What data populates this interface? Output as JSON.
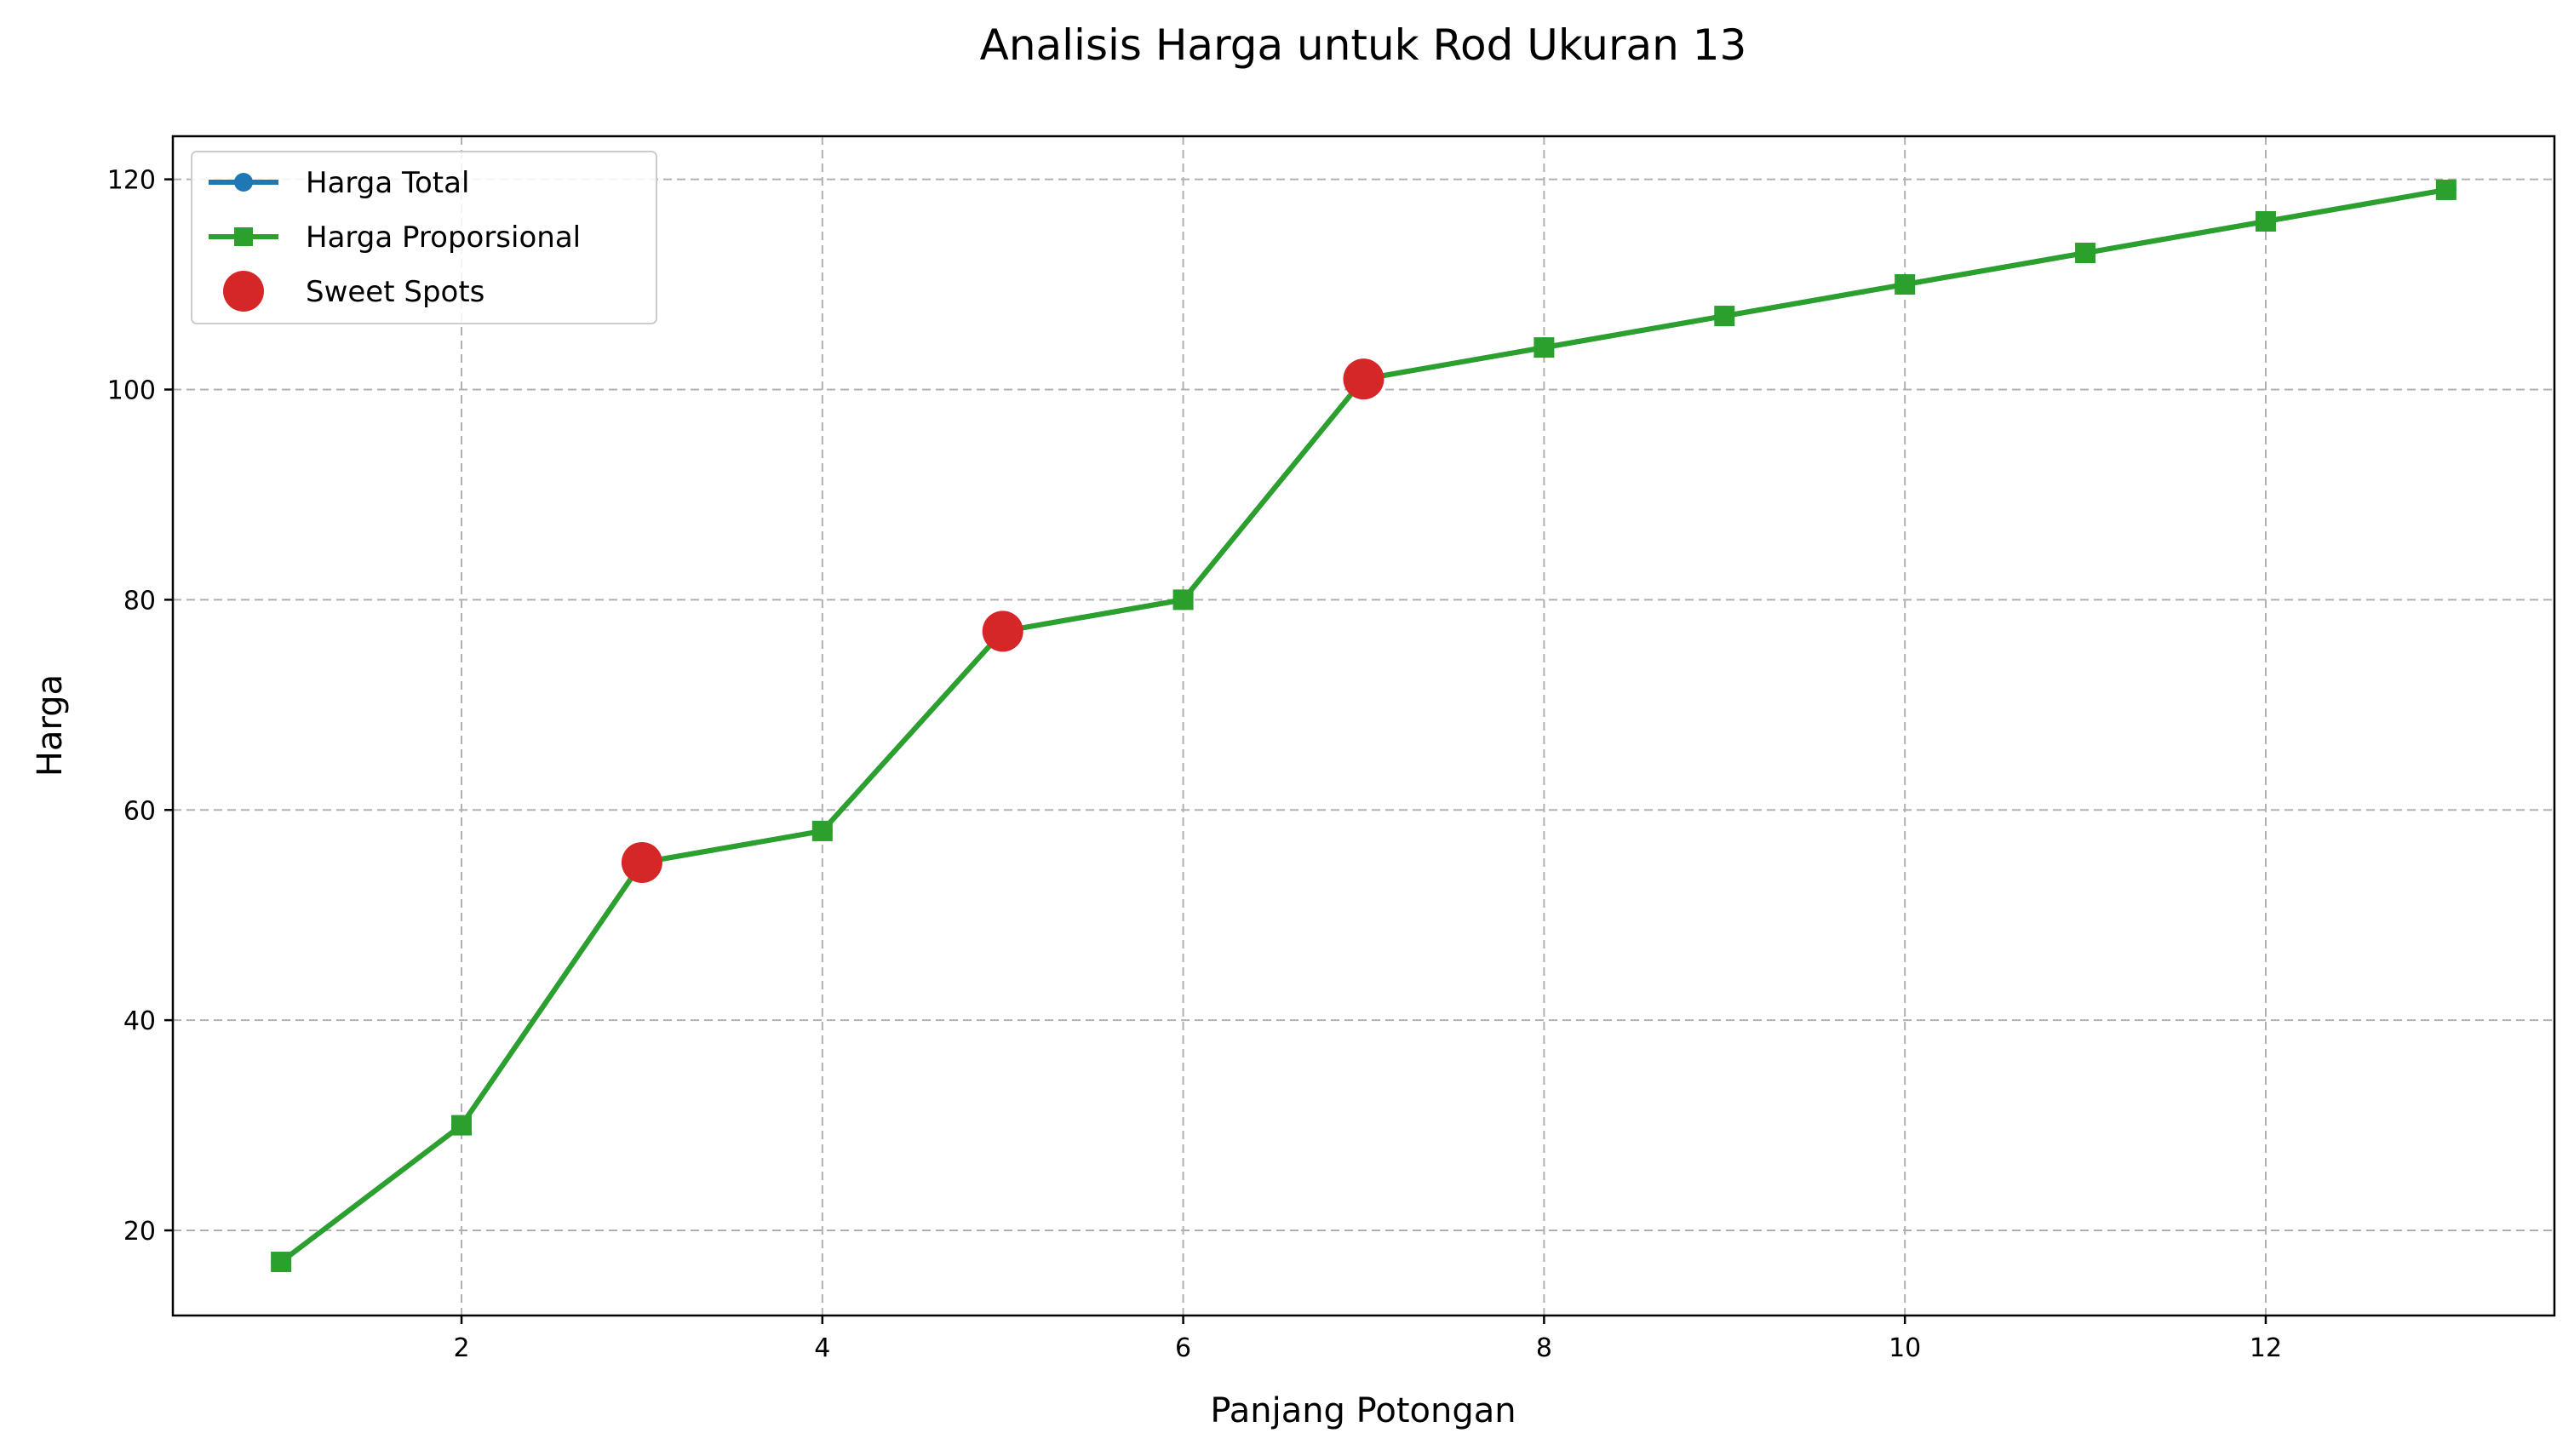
{
  "chart_data": {
    "type": "line",
    "title": "Analisis Harga untuk Rod Ukuran 13",
    "xlabel": "Panjang Potongan",
    "ylabel": "Harga",
    "xlim": [
      0.4,
      13.6
    ],
    "ylim": [
      11.9,
      124.1
    ],
    "xticks": [
      2,
      4,
      6,
      8,
      10,
      12
    ],
    "yticks": [
      20,
      40,
      60,
      80,
      100,
      120
    ],
    "grid": true,
    "legend_position": "top-left",
    "x": [
      1,
      2,
      3,
      4,
      5,
      6,
      7,
      8,
      9,
      10,
      11,
      12,
      13
    ],
    "series": [
      {
        "name": "Harga Total",
        "marker": "circle",
        "color": "#1f77b4",
        "values": [
          17,
          30,
          55,
          58,
          77,
          80,
          101,
          104,
          107,
          110,
          113,
          116,
          119
        ]
      },
      {
        "name": "Harga Proporsional",
        "marker": "square",
        "color": "#2ca02c",
        "values": [
          17,
          30,
          55,
          58,
          77,
          80,
          101,
          104,
          107,
          110,
          113,
          116,
          119
        ]
      }
    ],
    "highlights": {
      "name": "Sweet Spots",
      "marker": "circle",
      "color": "#d62728",
      "x": [
        3,
        5,
        7
      ],
      "y": [
        55,
        77,
        101
      ]
    }
  }
}
